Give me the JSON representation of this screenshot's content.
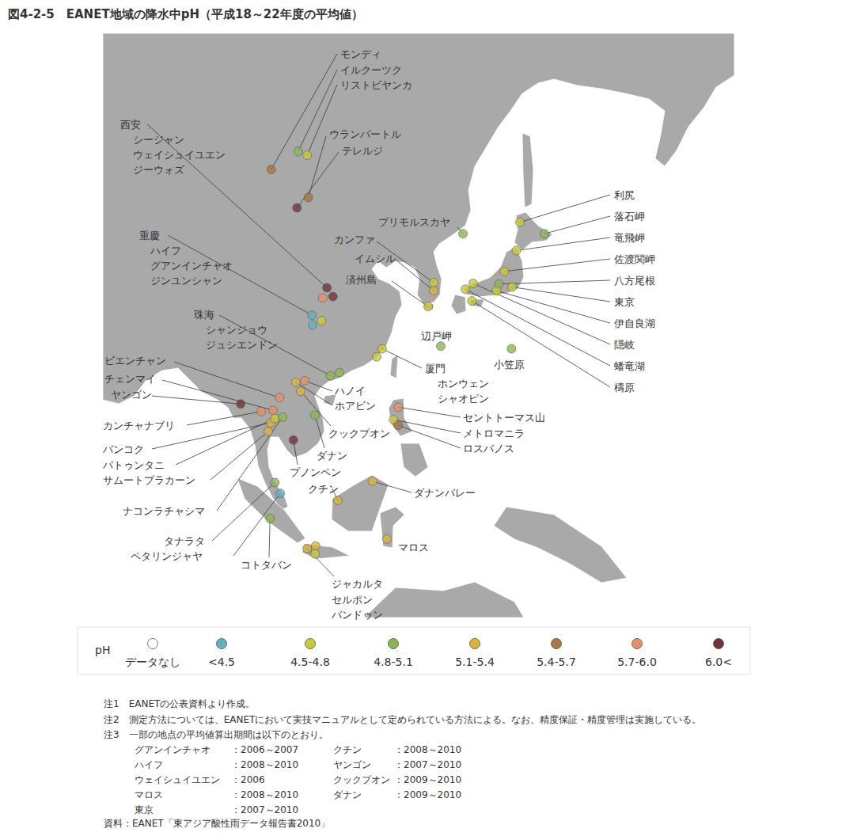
{
  "chart_data": {
    "type": "map",
    "title": "図4-2-5　EANET地域の降水中pH（平成18～22年度の平均値）",
    "xlim": [
      71.4,
      176.8
    ],
    "ylim": [
      -16.7,
      62.5
    ],
    "tick_labels": false,
    "grid": false,
    "legend_title": "pH",
    "ph_classes": [
      {
        "label": "データなし",
        "color": "#ffffff"
      },
      {
        "label": "<4.5",
        "color": "#5fb3bd"
      },
      {
        "label": "4.5-4.8",
        "color": "#c8c93c"
      },
      {
        "label": "4.8-5.1",
        "color": "#8db652"
      },
      {
        "label": "5.1-5.4",
        "color": "#dab343"
      },
      {
        "label": "5.4-5.7",
        "color": "#a97744"
      },
      {
        "label": "5.7-6.0",
        "color": "#e3916a"
      },
      {
        "label": "6.0<",
        "color": "#6f3639"
      }
    ],
    "sites": [
      {
        "name": "モンディ",
        "lon": 99.5,
        "lat": 50.0,
        "ph": "5.4-5.7"
      },
      {
        "name": "イルクーツク",
        "lon": 104.0,
        "lat": 51.9,
        "ph": "4.8-5.1"
      },
      {
        "name": "リストビヤンカ",
        "lon": 105.5,
        "lat": 51.5,
        "ph": "4.5-4.8"
      },
      {
        "name": "ウランバートル",
        "lon": 105.7,
        "lat": 46.9,
        "ph": "5.4-5.7"
      },
      {
        "name": "テレルジ",
        "lon": 103.8,
        "lat": 45.7,
        "ph": "6.0<"
      },
      {
        "name": "シージャン",
        "group": "西安",
        "lon": 108.8,
        "lat": 35.6,
        "ph": "6.0<"
      },
      {
        "name": "ウェイシュイユエン",
        "group": "西安",
        "lon": 108.1,
        "lat": 34.2,
        "ph": "5.7-6.0"
      },
      {
        "name": "ジーウォズ",
        "group": "西安",
        "lon": 109.8,
        "lat": 34.4,
        "ph": "6.0<"
      },
      {
        "name": "プリモルスカヤ",
        "lon": 131.5,
        "lat": 42.6,
        "ph": "4.8-5.1"
      },
      {
        "name": "カンファ",
        "lon": 126.6,
        "lat": 36.3,
        "ph": "4.5-4.8"
      },
      {
        "name": "イムシル",
        "lon": 126.6,
        "lat": 35.2,
        "ph": "5.1-5.4"
      },
      {
        "name": "済州島",
        "lon": 125.7,
        "lat": 33.0,
        "ph": "4.5-4.8"
      },
      {
        "name": "ハイフ",
        "group": "重慶",
        "lon": 106.3,
        "lat": 31.8,
        "ph": "<4.5"
      },
      {
        "name": "グアンインチャオ",
        "group": "重慶",
        "lon": 106.4,
        "lat": 30.4,
        "ph": "<4.5"
      },
      {
        "name": "ジンユンシャン",
        "group": "重慶",
        "lon": 107.9,
        "lat": 31.0,
        "ph": "4.5-4.8"
      },
      {
        "name": "シャンジョウ",
        "group": "珠海",
        "lon": 109.4,
        "lat": 22.8,
        "ph": "4.8-5.1"
      },
      {
        "name": "ジュシエンドン",
        "group": "珠海",
        "lon": 110.9,
        "lat": 23.3,
        "ph": "4.8-5.1"
      },
      {
        "name": "利尻",
        "lon": 141.0,
        "lat": 44.0,
        "ph": "4.5-4.8"
      },
      {
        "name": "落石岬",
        "lon": 145.1,
        "lat": 42.6,
        "ph": "4.8-5.1"
      },
      {
        "name": "竜飛岬",
        "lon": 140.4,
        "lat": 40.5,
        "ph": "4.5-4.8"
      },
      {
        "name": "佐渡関岬",
        "lon": 138.4,
        "lat": 37.8,
        "ph": "4.5-4.8"
      },
      {
        "name": "八方尾根",
        "lon": 137.5,
        "lat": 36.1,
        "ph": "4.8-5.1"
      },
      {
        "name": "東京",
        "lon": 139.7,
        "lat": 35.7,
        "ph": "4.5-4.8"
      },
      {
        "name": "伊自良湖",
        "lon": 137.1,
        "lat": 35.2,
        "ph": "4.5-4.8"
      },
      {
        "name": "隠岐",
        "lon": 133.2,
        "lat": 36.2,
        "ph": "4.5-4.8"
      },
      {
        "name": "蟠竜湖",
        "lon": 131.9,
        "lat": 35.4,
        "ph": "4.5-4.8"
      },
      {
        "name": "檮原",
        "lon": 133.0,
        "lat": 33.8,
        "ph": "4.5-4.8"
      },
      {
        "name": "辺戸岬",
        "lon": 127.8,
        "lat": 27.3,
        "ph": "4.8-5.1"
      },
      {
        "name": "小笠原",
        "lon": 139.6,
        "lat": 26.9,
        "ph": "4.8-5.1"
      },
      {
        "name": "ホンウェン",
        "group": "厦門",
        "lon": 118.0,
        "lat": 26.9,
        "ph": "4.5-4.8"
      },
      {
        "name": "シャオピン",
        "group": "厦門",
        "lon": 117.1,
        "lat": 25.7,
        "ph": "4.5-4.8"
      },
      {
        "name": "ビエンチャン",
        "lon": 100.9,
        "lat": 19.4,
        "ph": "5.7-6.0"
      },
      {
        "name": "チェンマイ",
        "lon": 99.8,
        "lat": 17.4,
        "ph": "5.7-6.0"
      },
      {
        "name": "ヤンゴン",
        "lon": 94.4,
        "lat": 18.4,
        "ph": "6.0<"
      },
      {
        "name": "ハノイ",
        "lon": 105.1,
        "lat": 22.05,
        "ph": "5.7-6.0"
      },
      {
        "name": "ホアビン",
        "lon": 103.6,
        "lat": 21.8,
        "ph": "5.1-5.4"
      },
      {
        "name": "セントトーマス山",
        "lon": 120.7,
        "lat": 17.9,
        "ph": "5.7-6.0"
      },
      {
        "name": "メトロマニラ",
        "lon": 119.9,
        "lat": 15.9,
        "ph": "4.5-4.8"
      },
      {
        "name": "ロスバノス",
        "lon": 120.7,
        "lat": 15.0,
        "ph": "5.4-5.7"
      },
      {
        "name": "カンチャナブリ",
        "lon": 97.8,
        "lat": 17.2,
        "ph": "5.7-6.0"
      },
      {
        "name": "クックプオン",
        "lon": 104.4,
        "lat": 20.4,
        "ph": "5.1-5.4"
      },
      {
        "name": "ダナン",
        "lon": 106.8,
        "lat": 16.6,
        "ph": "4.8-5.1"
      },
      {
        "name": "プノンペン",
        "lon": 103.2,
        "lat": 12.6,
        "ph": "6.0<"
      },
      {
        "name": "バンコク",
        "lon": 99.4,
        "lat": 15.4,
        "ph": "5.1-5.4"
      },
      {
        "name": "パトゥンタニ",
        "lon": 100.1,
        "lat": 16.1,
        "ph": "4.5-4.8"
      },
      {
        "name": "サムートプラカーン",
        "lon": 99.0,
        "lat": 14.0,
        "ph": "5.1-5.4"
      },
      {
        "name": "ナコンラチャシマ",
        "lon": 101.4,
        "lat": 16.3,
        "ph": "4.8-5.1"
      },
      {
        "name": "クチン",
        "lon": 110.6,
        "lat": 2.6,
        "ph": "5.1-5.4"
      },
      {
        "name": "ダナンバレー",
        "lon": 116.4,
        "lat": 5.8,
        "ph": "5.1-5.4"
      },
      {
        "name": "タナラタ",
        "lon": 100.1,
        "lat": 5.6,
        "ph": "4.8-5.1"
      },
      {
        "name": "ペタリンジャヤ",
        "lon": 101.0,
        "lat": 3.8,
        "ph": "<4.5"
      },
      {
        "name": "コトタバン",
        "lon": 99.3,
        "lat": -0.4,
        "ph": "4.8-5.1"
      },
      {
        "name": "マロス",
        "lon": 118.8,
        "lat": -3.8,
        "ph": "5.1-5.4"
      },
      {
        "name": "ジャカルタ",
        "lon": 105.5,
        "lat": -5.4,
        "ph": "5.1-5.4"
      },
      {
        "name": "セルポン",
        "lon": 106.9,
        "lat": -5.0,
        "ph": "5.1-5.4"
      },
      {
        "name": "バンドゥン",
        "lon": 106.8,
        "lat": -6.3,
        "ph": "4.5-4.8"
      }
    ]
  },
  "notes": {
    "lines": [
      "注1　EANETの公表資料より作成。",
      "注2　測定方法については、EANETにおいて実技マニュアルとして定められている方法による。なお、精度保証・精度管理は実施している。",
      "注3　一部の地点の平均値算出期間は以下のとおり。"
    ],
    "periods_left": [
      {
        "site": "グアンインチャオ",
        "period": "：2006～2007"
      },
      {
        "site": "ハイフ",
        "period": "：2008～2010"
      },
      {
        "site": "ウェイシュイユエン",
        "period": "：2006"
      },
      {
        "site": "マロス",
        "period": "：2008～2010"
      },
      {
        "site": "東京",
        "period": "：2007～2010"
      }
    ],
    "periods_right": [
      {
        "site": "クチン",
        "period": "：2008～2010"
      },
      {
        "site": "ヤンゴン",
        "period": "：2007～2010"
      },
      {
        "site": "クックプオン",
        "period": "：2009～2010"
      },
      {
        "site": "ダナン",
        "period": "：2009～2010"
      }
    ],
    "source": "資料：EANET「東アジア酸性雨データ報告書2010」"
  }
}
